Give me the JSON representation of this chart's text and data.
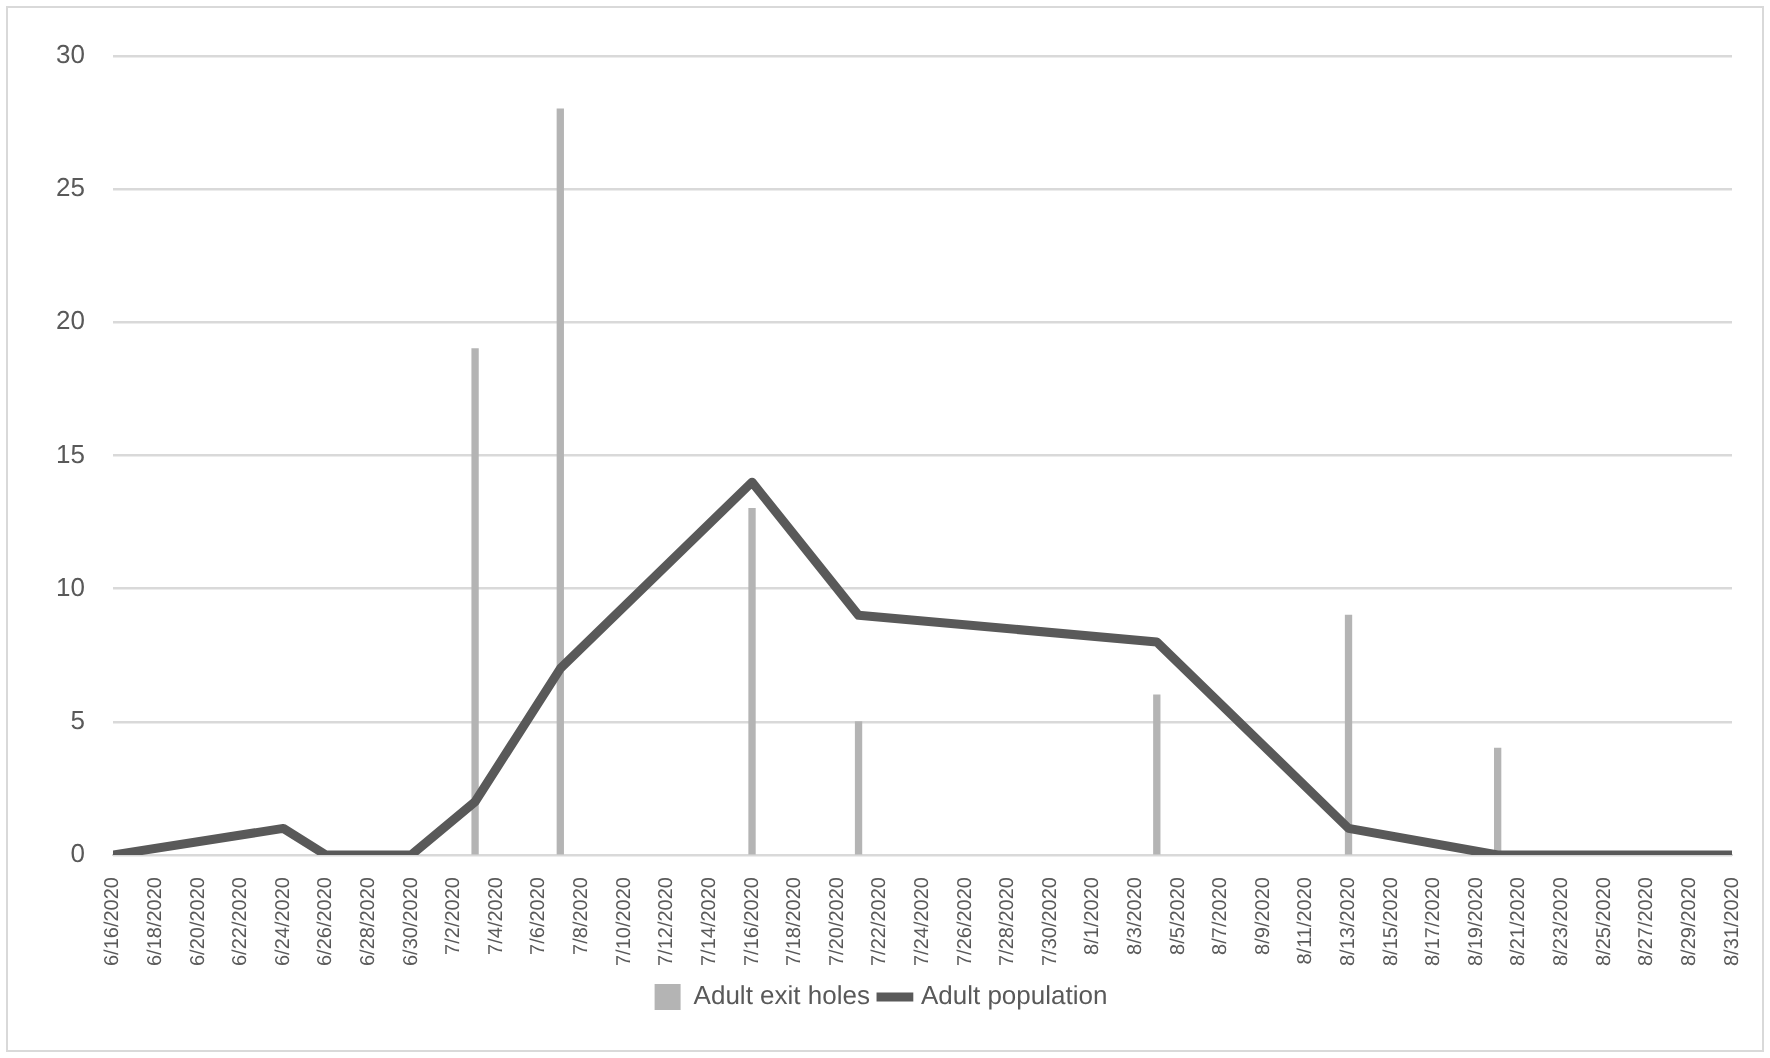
{
  "chart_data": {
    "type": "bar",
    "xlim": [
      "2020-06-16",
      "2020-08-31"
    ],
    "xticks": [
      {
        "value": "2020-06-16",
        "label": "6/16/2020"
      },
      {
        "value": "2020-06-18",
        "label": "6/18/2020"
      },
      {
        "value": "2020-06-20",
        "label": "6/20/2020"
      },
      {
        "value": "2020-06-22",
        "label": "6/22/2020"
      },
      {
        "value": "2020-06-24",
        "label": "6/24/2020"
      },
      {
        "value": "2020-06-26",
        "label": "6/26/2020"
      },
      {
        "value": "2020-06-28",
        "label": "6/28/2020"
      },
      {
        "value": "2020-06-30",
        "label": "6/30/2020"
      },
      {
        "value": "2020-07-02",
        "label": "7/2/2020"
      },
      {
        "value": "2020-07-04",
        "label": "7/4/2020"
      },
      {
        "value": "2020-07-06",
        "label": "7/6/2020"
      },
      {
        "value": "2020-07-08",
        "label": "7/8/2020"
      },
      {
        "value": "2020-07-10",
        "label": "7/10/2020"
      },
      {
        "value": "2020-07-12",
        "label": "7/12/2020"
      },
      {
        "value": "2020-07-14",
        "label": "7/14/2020"
      },
      {
        "value": "2020-07-16",
        "label": "7/16/2020"
      },
      {
        "value": "2020-07-18",
        "label": "7/18/2020"
      },
      {
        "value": "2020-07-20",
        "label": "7/20/2020"
      },
      {
        "value": "2020-07-22",
        "label": "7/22/2020"
      },
      {
        "value": "2020-07-24",
        "label": "7/24/2020"
      },
      {
        "value": "2020-07-26",
        "label": "7/26/2020"
      },
      {
        "value": "2020-07-28",
        "label": "7/28/2020"
      },
      {
        "value": "2020-07-30",
        "label": "7/30/2020"
      },
      {
        "value": "2020-08-01",
        "label": "8/1/2020"
      },
      {
        "value": "2020-08-03",
        "label": "8/3/2020"
      },
      {
        "value": "2020-08-05",
        "label": "8/5/2020"
      },
      {
        "value": "2020-08-07",
        "label": "8/7/2020"
      },
      {
        "value": "2020-08-09",
        "label": "8/9/2020"
      },
      {
        "value": "2020-08-11",
        "label": "8/11/2020"
      },
      {
        "value": "2020-08-13",
        "label": "8/13/2020"
      },
      {
        "value": "2020-08-15",
        "label": "8/15/2020"
      },
      {
        "value": "2020-08-17",
        "label": "8/17/2020"
      },
      {
        "value": "2020-08-19",
        "label": "8/19/2020"
      },
      {
        "value": "2020-08-21",
        "label": "8/21/2020"
      },
      {
        "value": "2020-08-23",
        "label": "8/23/2020"
      },
      {
        "value": "2020-08-25",
        "label": "8/25/2020"
      },
      {
        "value": "2020-08-27",
        "label": "8/27/2020"
      },
      {
        "value": "2020-08-29",
        "label": "8/29/2020"
      },
      {
        "value": "2020-08-31",
        "label": "8/31/2020"
      }
    ],
    "ylim": [
      0,
      30
    ],
    "yticks": [
      0,
      5,
      10,
      15,
      20,
      25,
      30
    ],
    "grid": "y",
    "legend": "bottom",
    "series": [
      {
        "name": "Adult exit holes",
        "color": "#b4b4b4",
        "x": [
          "2020-07-03",
          "2020-07-07",
          "2020-07-16",
          "2020-07-21",
          "2020-08-04",
          "2020-08-13",
          "2020-08-20"
        ],
        "values": [
          19,
          28,
          13,
          5,
          6,
          9,
          4
        ]
      },
      {
        "name": "Adult population",
        "type": "line",
        "color": "#595959",
        "marker": "none",
        "line_style": "solid",
        "x": [
          "2020-06-16",
          "2020-06-24",
          "2020-06-26",
          "2020-06-30",
          "2020-07-03",
          "2020-07-07",
          "2020-07-16",
          "2020-07-21",
          "2020-08-04",
          "2020-08-13",
          "2020-08-20",
          "2020-08-31"
        ],
        "values": [
          0,
          1,
          0,
          0,
          2,
          7,
          14,
          9,
          8,
          1,
          0,
          0
        ]
      }
    ]
  }
}
